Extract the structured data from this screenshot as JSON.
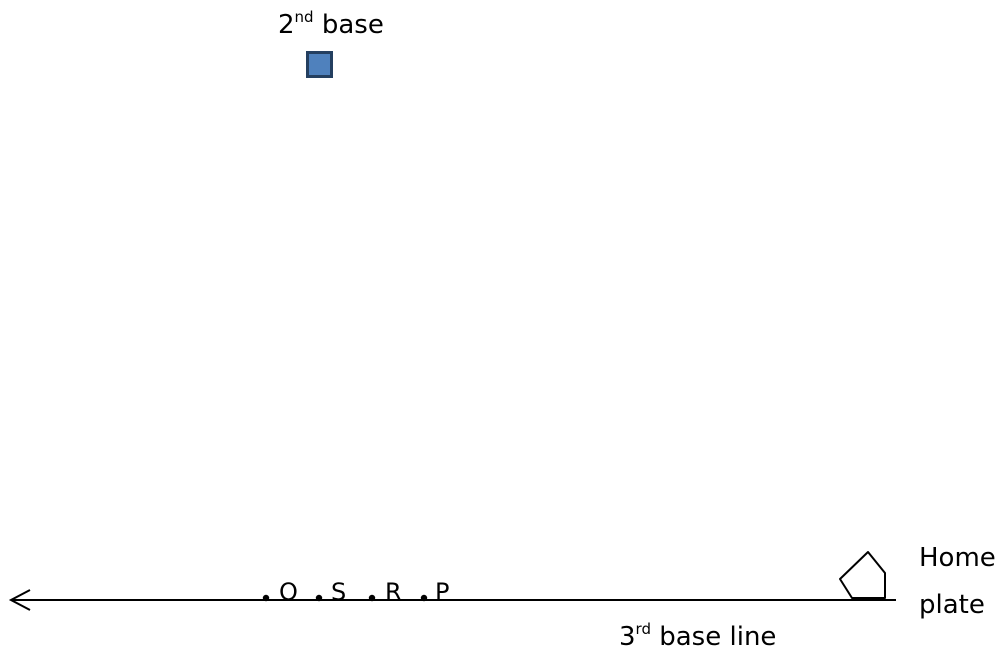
{
  "second_base": {
    "num": "2",
    "suffix": "nd",
    "word": "base",
    "fill_color": "#4f81bd",
    "stroke_color": "#243f60"
  },
  "third_base_line": {
    "num": "3",
    "suffix": "rd",
    "word": "base line"
  },
  "home_plate": {
    "line1": "Home",
    "line2": "plate"
  },
  "points": [
    "O",
    "S",
    "R",
    "P"
  ],
  "line_color": "#000000"
}
